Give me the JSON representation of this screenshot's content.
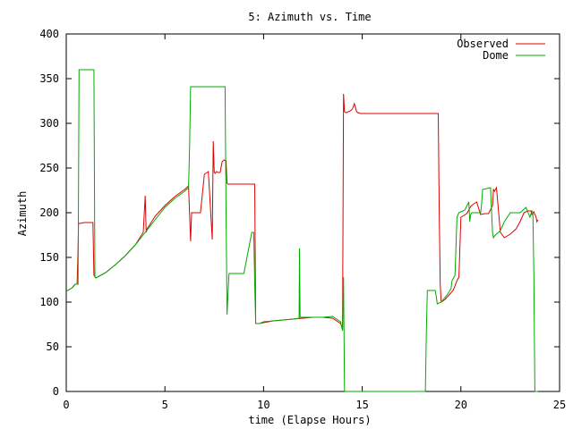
{
  "chart_data": {
    "type": "line",
    "title": "5: Azimuth vs. Time",
    "xlabel": "time (Elapse Hours)",
    "ylabel": "Azimuth",
    "xlim": [
      0,
      25
    ],
    "ylim": [
      0,
      400
    ],
    "xticks": [
      0,
      5,
      10,
      15,
      20,
      25
    ],
    "yticks": [
      0,
      50,
      100,
      150,
      200,
      250,
      300,
      350,
      400
    ],
    "grid": false,
    "legend_position": "top-right",
    "series": [
      {
        "name": "Observed",
        "color": "#dd0000",
        "x": [
          0.0,
          0.3,
          0.45,
          0.55,
          0.6,
          0.62,
          0.7,
          0.9,
          1.2,
          1.35,
          1.4,
          1.5,
          2.0,
          2.5,
          3.0,
          3.5,
          3.9,
          4.0,
          4.05,
          4.1,
          4.5,
          5.0,
          5.5,
          6.0,
          6.2,
          6.3,
          6.35,
          6.4,
          6.5,
          6.6,
          6.8,
          7.0,
          7.2,
          7.4,
          7.45,
          7.5,
          7.55,
          7.6,
          7.7,
          7.8,
          7.9,
          8.0,
          8.1,
          8.15,
          8.2,
          8.5,
          9.0,
          9.5,
          9.55,
          9.6,
          9.8,
          10.0,
          10.5,
          11.0,
          11.5,
          12.0,
          12.5,
          13.0,
          13.5,
          13.9,
          14.0,
          14.05,
          14.1,
          14.15,
          14.2,
          14.4,
          14.5,
          14.6,
          14.7,
          14.75,
          14.8,
          14.9,
          15.0,
          16.0,
          17.0,
          18.0,
          18.8,
          18.85,
          18.9,
          18.95,
          19.0,
          19.2,
          19.4,
          19.6,
          19.7,
          19.8,
          19.9,
          20.0,
          20.3,
          20.4,
          20.5,
          20.6,
          20.8,
          21.0,
          21.2,
          21.4,
          21.6,
          21.65,
          21.7,
          21.8,
          22.0,
          22.2,
          22.5,
          22.8,
          23.0,
          23.2,
          23.4,
          23.55,
          23.6,
          23.7,
          23.75,
          23.8,
          23.85,
          23.9
        ],
        "y": [
          112,
          116,
          120,
          120,
          160,
          188,
          188,
          189,
          189,
          189,
          130,
          127,
          133,
          142,
          152,
          164,
          178,
          219,
          178,
          182,
          196,
          208,
          218,
          226,
          230,
          168,
          200,
          200,
          200,
          200,
          200,
          243,
          246,
          170,
          280,
          245,
          244,
          246,
          245,
          245,
          257,
          259,
          258,
          233,
          232,
          232,
          232,
          232,
          232,
          76,
          76,
          77,
          79,
          80,
          81,
          82,
          83,
          83,
          82,
          76,
          70,
          333,
          313,
          312,
          312,
          314,
          316,
          322,
          314,
          312,
          312,
          311,
          311,
          311,
          311,
          311,
          311,
          311,
          200,
          120,
          100,
          103,
          108,
          113,
          118,
          124,
          128,
          195,
          199,
          203,
          207,
          209,
          212,
          198,
          199,
          199,
          208,
          226,
          224,
          228,
          178,
          172,
          176,
          182,
          190,
          200,
          202,
          202,
          198,
          201,
          198,
          196,
          190,
          192
        ]
      },
      {
        "name": "Dome",
        "color": "#00aa00",
        "x": [
          0.0,
          0.3,
          0.45,
          0.6,
          0.65,
          0.7,
          1.0,
          1.3,
          1.4,
          1.45,
          1.5,
          2.0,
          2.5,
          3.0,
          3.5,
          4.0,
          4.5,
          5.0,
          5.5,
          6.0,
          6.2,
          6.25,
          6.3,
          6.35,
          7.0,
          8.0,
          8.05,
          8.1,
          8.15,
          8.2,
          8.25,
          8.3,
          8.5,
          9.0,
          9.4,
          9.5,
          9.55,
          9.6,
          9.65,
          9.8,
          10.0,
          10.5,
          11.0,
          11.5,
          11.8,
          11.82,
          11.85,
          12.0,
          12.5,
          13.0,
          13.5,
          13.9,
          14.0,
          14.05,
          14.1,
          14.12,
          14.15,
          18.2,
          18.25,
          18.3,
          18.7,
          18.75,
          18.8,
          19.0,
          19.3,
          19.5,
          19.55,
          19.7,
          19.8,
          19.9,
          20.2,
          20.4,
          20.45,
          20.5,
          20.55,
          20.6,
          21.0,
          21.05,
          21.1,
          21.5,
          21.6,
          21.65,
          21.7,
          22.0,
          22.2,
          22.5,
          23.0,
          23.3,
          23.5,
          23.6,
          23.65,
          23.7,
          23.75,
          23.9
        ],
        "y": [
          112,
          116,
          120,
          120,
          360,
          360,
          360,
          360,
          360,
          128,
          127,
          133,
          142,
          152,
          164,
          178,
          192,
          206,
          216,
          224,
          228,
          276,
          341,
          341,
          341,
          341,
          341,
          200,
          86,
          110,
          132,
          132,
          132,
          132,
          178,
          178,
          120,
          76,
          76,
          76,
          78,
          79,
          80,
          81,
          82,
          160,
          83,
          83,
          83,
          83,
          84,
          78,
          68,
          128,
          0,
          0,
          0,
          0,
          65,
          113,
          113,
          106,
          98,
          100,
          108,
          115,
          124,
          130,
          195,
          200,
          203,
          212,
          190,
          198,
          200,
          200,
          200,
          209,
          226,
          228,
          178,
          172,
          174,
          180,
          190,
          200,
          200,
          206,
          195,
          202,
          200,
          130,
          0,
          0
        ]
      }
    ]
  }
}
